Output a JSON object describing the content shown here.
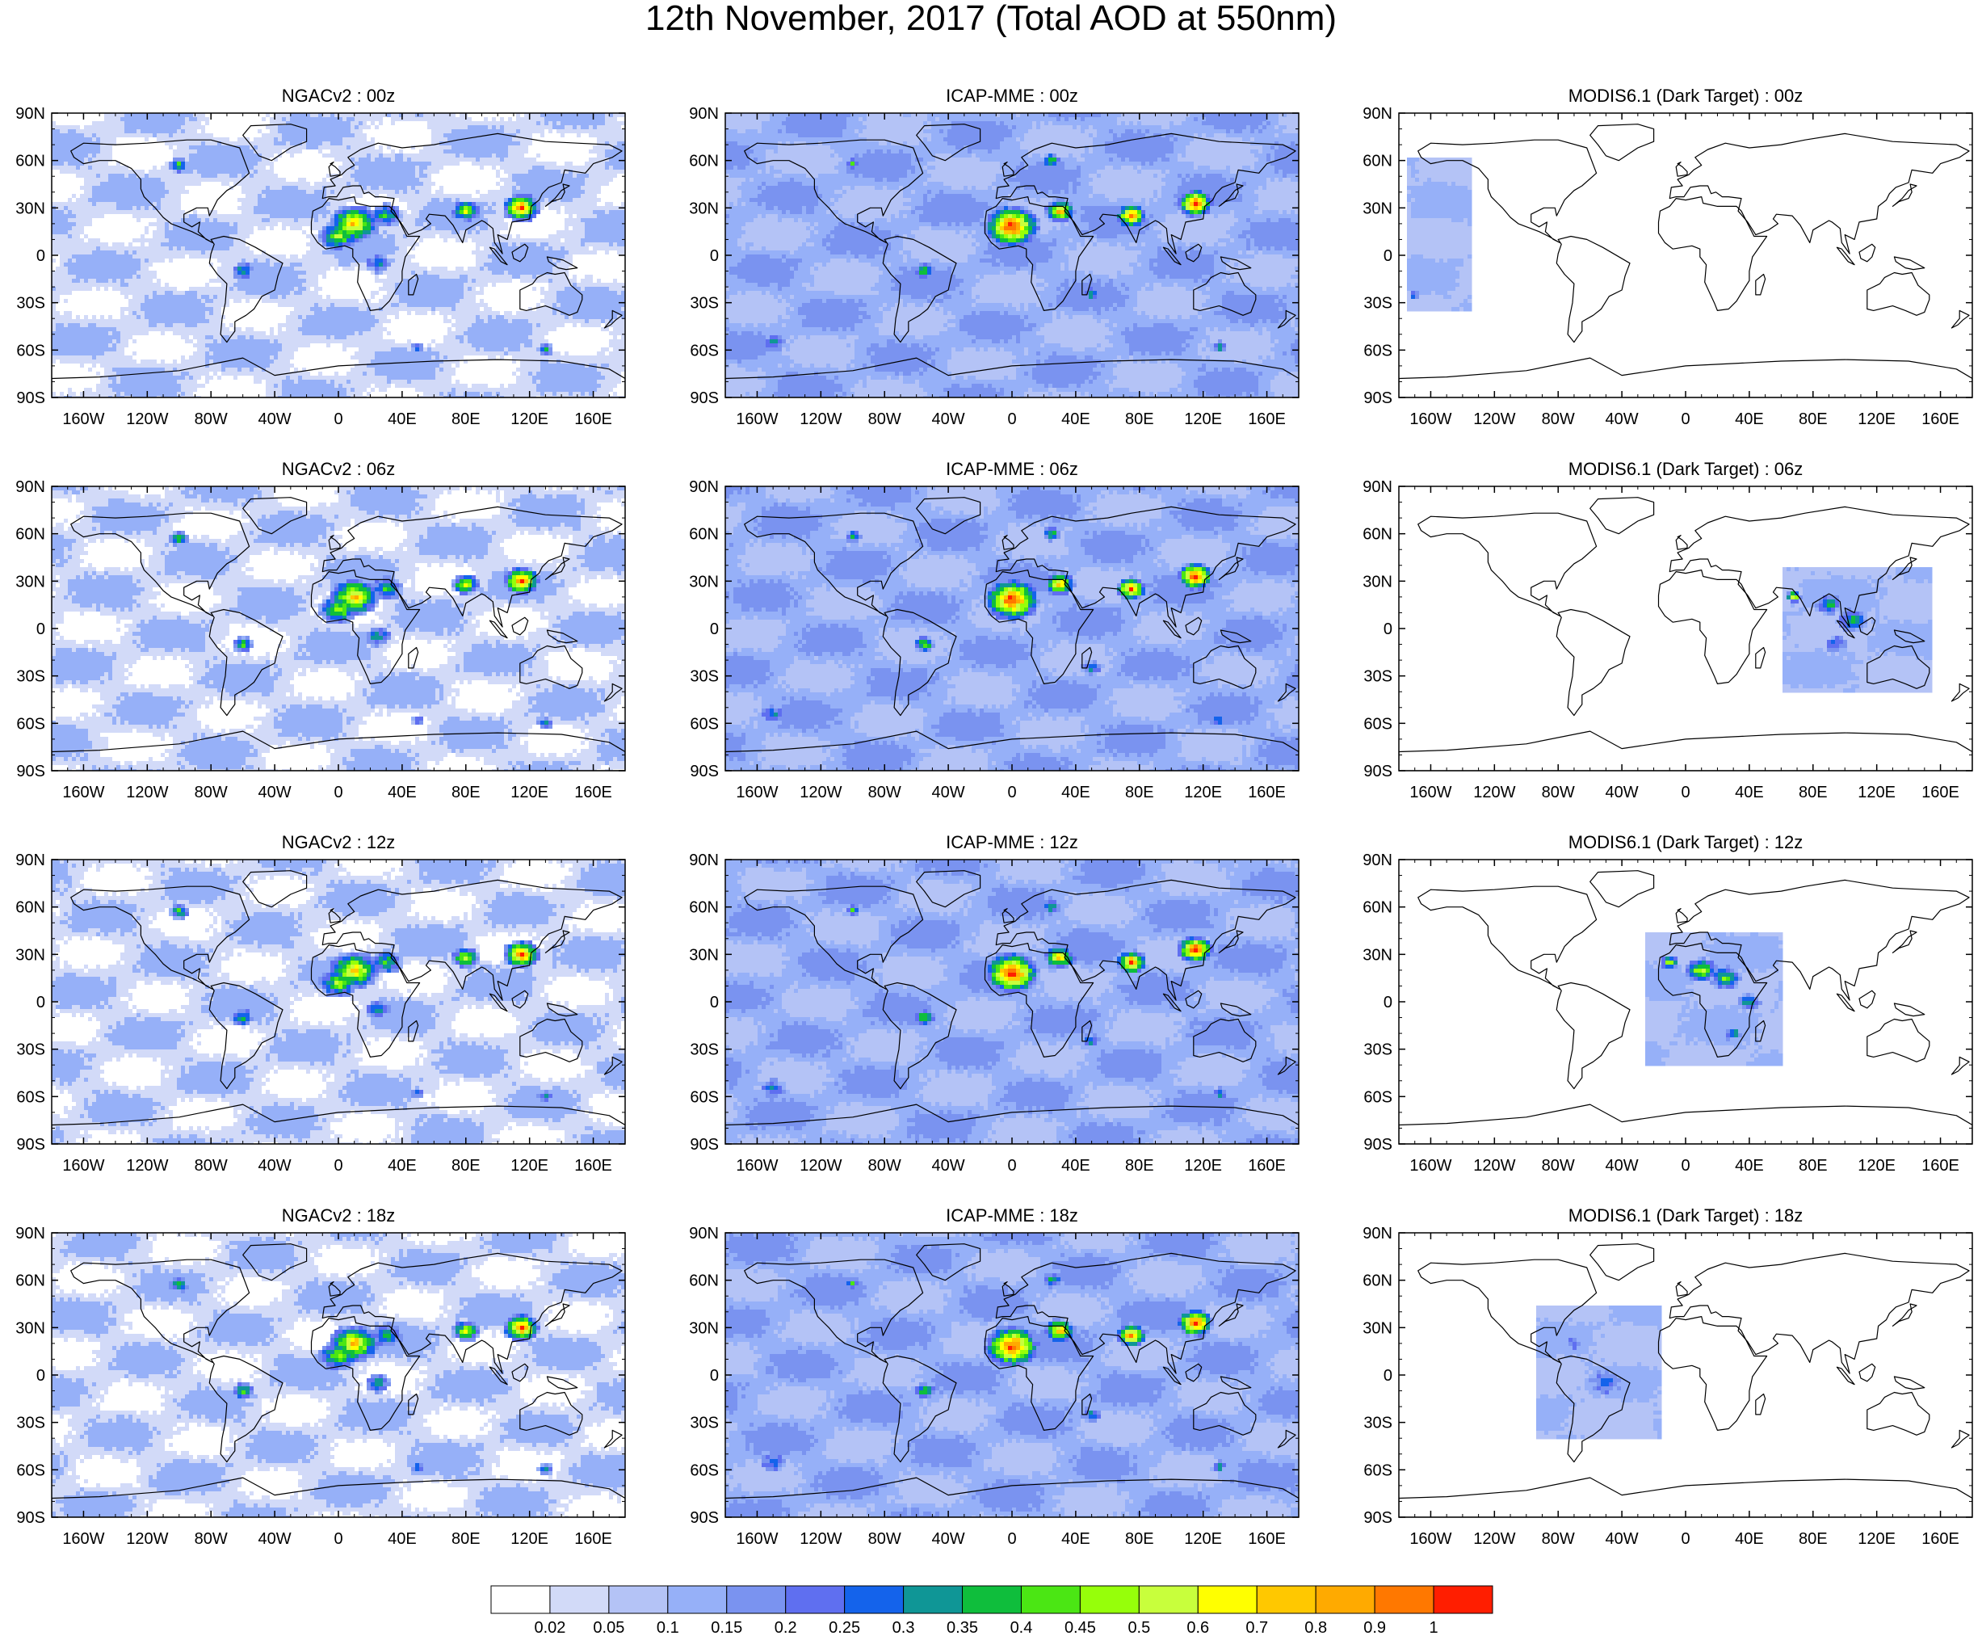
{
  "title": "12th November, 2017 (Total AOD at 550nm)",
  "axes": {
    "lon_ticks": [
      "160W",
      "120W",
      "80W",
      "40W",
      "0",
      "40E",
      "80E",
      "120E",
      "160E"
    ],
    "lat_ticks": [
      "90N",
      "60N",
      "30N",
      "0",
      "30S",
      "60S",
      "90S"
    ]
  },
  "panels": [
    {
      "title": "NGACv2 : 00z",
      "source": "NGACv2",
      "time": "00z",
      "coverage": "global"
    },
    {
      "title": "ICAP-MME : 00z",
      "source": "ICAP-MME",
      "time": "00z",
      "coverage": "global"
    },
    {
      "title": "MODIS6.1 (Dark Target) : 00z",
      "source": "MODIS6.1 (Dark Target)",
      "time": "00z",
      "coverage": "east Pacific swath"
    },
    {
      "title": "NGACv2 : 06z",
      "source": "NGACv2",
      "time": "06z",
      "coverage": "global"
    },
    {
      "title": "ICAP-MME : 06z",
      "source": "ICAP-MME",
      "time": "06z",
      "coverage": "global"
    },
    {
      "title": "MODIS6.1 (Dark Target) : 06z",
      "source": "MODIS6.1 (Dark Target)",
      "time": "06z",
      "coverage": "Indian Ocean to SE Asia swath"
    },
    {
      "title": "NGACv2 : 12z",
      "source": "NGACv2",
      "time": "12z",
      "coverage": "global"
    },
    {
      "title": "ICAP-MME : 12z",
      "source": "ICAP-MME",
      "time": "12z",
      "coverage": "global"
    },
    {
      "title": "MODIS6.1 (Dark Target) : 12z",
      "source": "MODIS6.1 (Dark Target)",
      "time": "12z",
      "coverage": "Africa swath"
    },
    {
      "title": "NGACv2 : 18z",
      "source": "NGACv2",
      "time": "18z",
      "coverage": "global"
    },
    {
      "title": "ICAP-MME : 18z",
      "source": "ICAP-MME",
      "time": "18z",
      "coverage": "global"
    },
    {
      "title": "MODIS6.1 (Dark Target) : 18z",
      "source": "MODIS6.1 (Dark Target)",
      "time": "18z",
      "coverage": "South America swath"
    }
  ],
  "colorbar": {
    "colors": [
      "#ffffff",
      "#d2daf8",
      "#b4c3f6",
      "#96b0f8",
      "#7a93f0",
      "#5f6ff0",
      "#1463eb",
      "#0f9696",
      "#0fbe3c",
      "#4be614",
      "#96ff0a",
      "#c8ff3c",
      "#ffff00",
      "#ffc800",
      "#ffaa00",
      "#ff7800",
      "#ff1e00"
    ],
    "labels": [
      "0.02",
      "0.05",
      "0.1",
      "0.15",
      "0.2",
      "0.25",
      "0.3",
      "0.35",
      "0.4",
      "0.45",
      "0.5",
      "0.6",
      "0.7",
      "0.8",
      "0.9",
      "1"
    ]
  }
}
